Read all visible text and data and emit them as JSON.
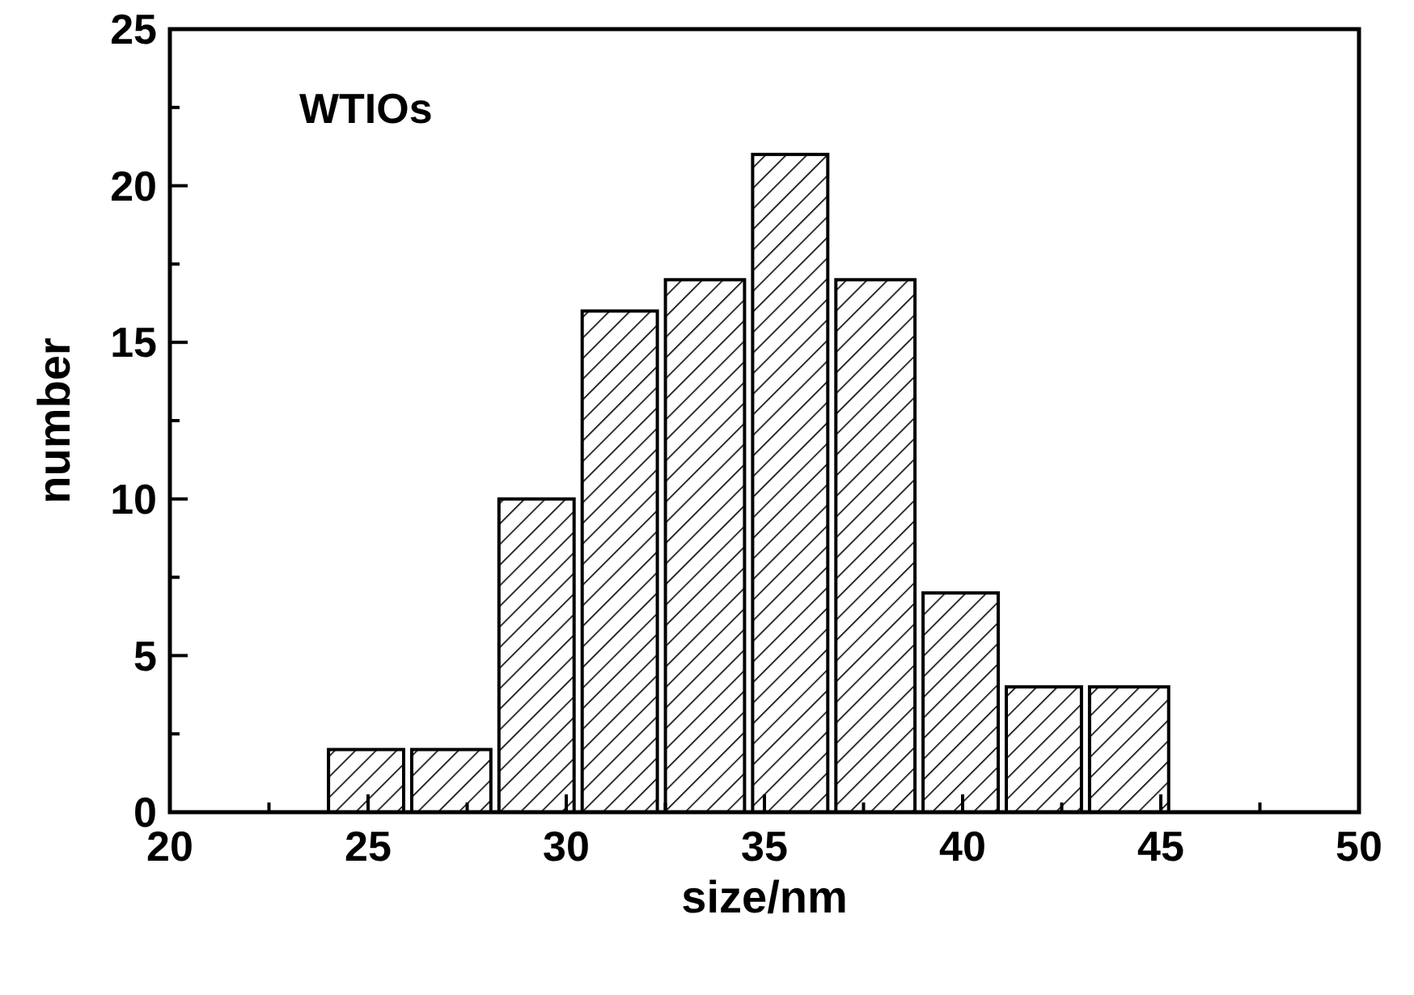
{
  "chart_data": {
    "type": "histogram",
    "xlabel": "size/nm",
    "ylabel": "number",
    "annotations": [
      "WTIOs"
    ],
    "bins": [
      23.9,
      26.0,
      28.2,
      30.3,
      32.4,
      34.6,
      36.7,
      38.9,
      41.0,
      43.1,
      45.3
    ],
    "values": [
      2,
      2,
      10,
      16,
      17,
      21,
      17,
      7,
      4,
      4
    ],
    "color": "#000000",
    "xlim": [
      20,
      50
    ],
    "xticks": [
      20,
      {
        "value": 22.5,
        "label": null
      },
      25,
      {
        "value": 27.5,
        "label": null
      },
      30,
      {
        "value": 32.5,
        "label": null
      },
      35,
      {
        "value": 37.5,
        "label": null
      },
      40,
      {
        "value": 42.5,
        "label": null
      },
      45,
      {
        "value": 47.5,
        "label": null
      },
      50
    ],
    "ylim": [
      0,
      25
    ],
    "yticks": [
      0,
      {
        "value": 2.5,
        "label": null
      },
      5,
      {
        "value": 7.5,
        "label": null
      },
      10,
      {
        "value": 12.5,
        "label": null
      },
      15,
      {
        "value": 17.5,
        "label": null
      },
      20,
      {
        "value": 22.5,
        "label": null
      },
      25
    ],
    "grid": false
  }
}
